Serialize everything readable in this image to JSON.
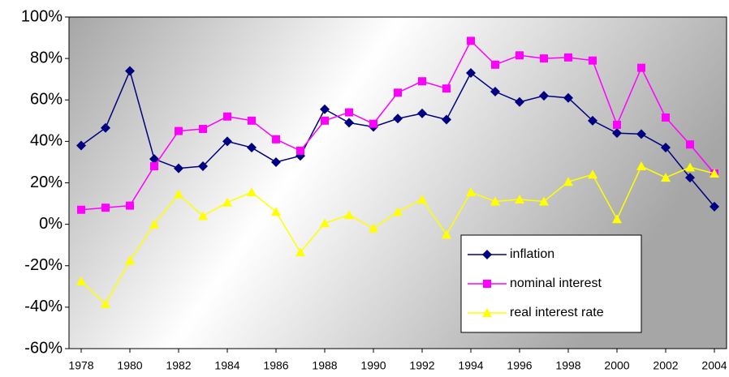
{
  "chart_data": {
    "type": "line",
    "x": [
      1978,
      1979,
      1980,
      1981,
      1982,
      1983,
      1984,
      1985,
      1986,
      1987,
      1988,
      1989,
      1990,
      1991,
      1992,
      1993,
      1994,
      1995,
      1996,
      1997,
      1998,
      1999,
      2000,
      2001,
      2002,
      2003,
      2004
    ],
    "series": [
      {
        "name": "inflation",
        "color": "#000080",
        "marker": "diamond",
        "values": [
          38,
          46.5,
          74,
          31.5,
          27,
          28,
          40,
          37,
          30,
          33,
          55.5,
          49,
          47,
          51,
          53.5,
          50.5,
          73,
          64,
          59,
          62,
          61,
          50,
          44,
          43.5,
          37,
          22.5,
          8.5
        ]
      },
      {
        "name": "nominal interest",
        "color": "#ff00ff",
        "marker": "square",
        "values": [
          7,
          8,
          9,
          28,
          45,
          46,
          52,
          50,
          41,
          35.5,
          50,
          54,
          48.5,
          63.5,
          69,
          65.5,
          88.5,
          77,
          81.5,
          80,
          80.5,
          79,
          48,
          75.5,
          51.5,
          38.5,
          24.5
        ]
      },
      {
        "name": "real interest rate",
        "color": "#ffff00",
        "marker": "triangle",
        "values": [
          -27.5,
          -38.5,
          -17.5,
          0,
          14.5,
          4,
          10.5,
          15.5,
          6,
          -13.5,
          0.5,
          4.5,
          -2,
          6,
          12,
          -5,
          15.5,
          11,
          12,
          11,
          20.5,
          24,
          2.5,
          28,
          22.5,
          27.5,
          24.5
        ]
      }
    ],
    "xlim": [
      1977.5,
      2004.5
    ],
    "xticks": [
      1978,
      1980,
      1982,
      1984,
      1986,
      1988,
      1990,
      1992,
      1994,
      1996,
      1998,
      2000,
      2002,
      2004
    ],
    "ylim": [
      -60,
      100
    ],
    "yticks": [
      {
        "value": -60,
        "label": "-60%"
      },
      {
        "value": -40,
        "label": "-40%"
      },
      {
        "value": -20,
        "label": "-20%"
      },
      {
        "value": 0,
        "label": "0%"
      },
      {
        "value": 20,
        "label": "20%"
      },
      {
        "value": 40,
        "label": "40%"
      },
      {
        "value": 60,
        "label": "60%"
      },
      {
        "value": 80,
        "label": "80%"
      },
      {
        "value": 100,
        "label": "100%"
      }
    ],
    "grid": false,
    "legend": "lower right"
  }
}
